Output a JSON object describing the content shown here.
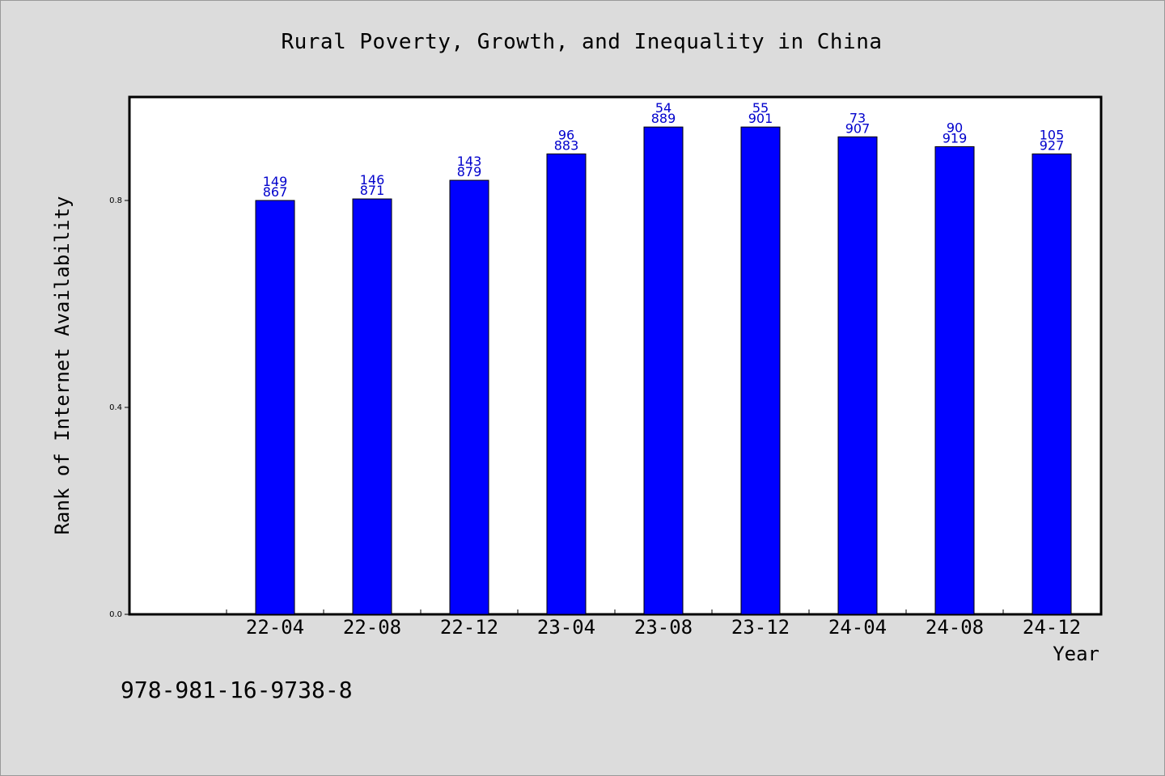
{
  "chart_data": {
    "type": "bar",
    "title": "Rural Poverty, Growth, and Inequality in China",
    "xlabel": "Year",
    "ylabel": "Rank of Internet Availability",
    "categories": [
      "22-04",
      "22-08",
      "22-12",
      "23-04",
      "23-08",
      "23-12",
      "24-04",
      "24-08",
      "24-12"
    ],
    "values": [
      0.8,
      0.803,
      0.839,
      0.89,
      0.942,
      0.942,
      0.923,
      0.904,
      0.89
    ],
    "labels_top": [
      "149",
      "146",
      "143",
      "96",
      "54",
      "55",
      "73",
      "90",
      "105"
    ],
    "labels_bottom": [
      "867",
      "871",
      "879",
      "883",
      "889",
      "901",
      "907",
      "919",
      "927"
    ],
    "ylim": [
      0,
      1.0
    ],
    "yticks": [
      0.0,
      0.4,
      0.8
    ],
    "ytick_labels": [
      "0.0",
      "0.4",
      "0.8"
    ],
    "bar_color": "#0000ff",
    "label_color": "#0000cc",
    "grid": false
  },
  "footer": {
    "code": "978-981-16-9738-8"
  }
}
